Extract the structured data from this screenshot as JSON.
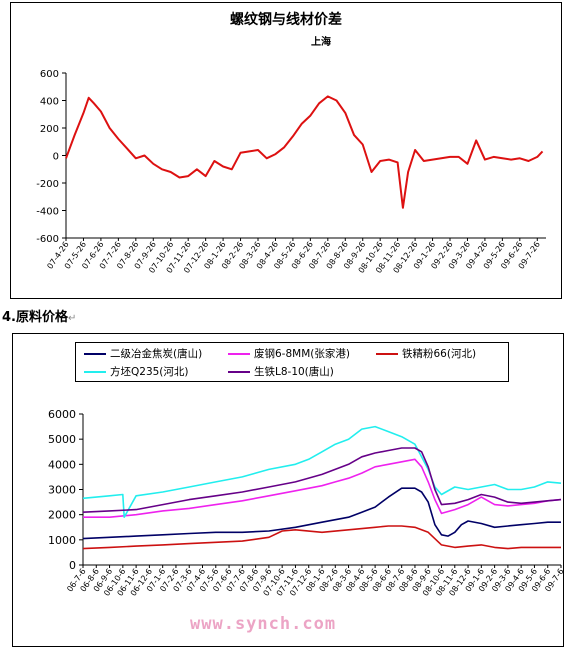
{
  "section_heading": "4.原料价格",
  "watermark": "www.synch.com",
  "chart_data": [
    {
      "type": "line",
      "title": "螺纹钢与线材价差",
      "subtitle": "上海",
      "ylim": [
        -600,
        600
      ],
      "yticks": [
        600,
        400,
        200,
        0,
        -200,
        -400,
        -600
      ],
      "grid": false,
      "legend": "none",
      "x_tick_labels": [
        "07-4-26",
        "07-5-26",
        "07-6-26",
        "07-7-26",
        "07-8-26",
        "07-9-26",
        "07-10-26",
        "07-11-26",
        "07-12-26",
        "08-1-26",
        "08-2-26",
        "08-3-26",
        "08-4-26",
        "08-5-26",
        "08-6-26",
        "08-7-26",
        "08-8-26",
        "08-9-26",
        "08-10-26",
        "08-11-26",
        "08-12-26",
        "09-1-26",
        "09-2-26",
        "09-3-26",
        "09-4-26",
        "09-5-26",
        "09-6-26",
        "09-7-26"
      ],
      "series": [
        {
          "color": "#dd1111",
          "x": [
            0,
            0.5,
            1,
            1.3,
            1.6,
            2,
            2.5,
            3,
            3.5,
            4,
            4.5,
            5,
            5.5,
            6,
            6.5,
            7,
            7.5,
            8,
            8.5,
            9,
            9.5,
            10,
            10.5,
            11,
            11.5,
            12,
            12.5,
            13,
            13.5,
            14,
            14.5,
            15,
            15.5,
            16,
            16.5,
            17,
            17.5,
            18,
            18.5,
            19,
            19.3,
            19.6,
            20,
            20.5,
            21,
            21.5,
            22,
            22.5,
            23,
            23.5,
            24,
            24.5,
            25,
            25.5,
            26,
            26.5,
            27,
            27.3
          ],
          "values": [
            -20,
            150,
            310,
            420,
            380,
            320,
            200,
            120,
            50,
            -20,
            0,
            -60,
            -100,
            -120,
            -160,
            -150,
            -100,
            -150,
            -40,
            -80,
            -100,
            20,
            30,
            40,
            -20,
            10,
            60,
            140,
            230,
            290,
            380,
            430,
            400,
            310,
            150,
            80,
            -120,
            -40,
            -30,
            -50,
            -380,
            -120,
            40,
            -40,
            -30,
            -20,
            -10,
            -10,
            -60,
            110,
            -30,
            -10,
            -20,
            -30,
            -20,
            -40,
            -10,
            30
          ]
        }
      ]
    },
    {
      "type": "line",
      "ylim": [
        0,
        6000
      ],
      "yticks": [
        6000,
        5000,
        4000,
        3000,
        2000,
        1000,
        0
      ],
      "grid": false,
      "legend": "top",
      "x_tick_labels": [
        "06-7-6",
        "06-8-6",
        "06-9-6",
        "06-10-6",
        "06-11-6",
        "06-12-6",
        "07-1-6",
        "07-2-6",
        "07-3-6",
        "07-4-6",
        "07-5-6",
        "07-6-6",
        "07-7-6",
        "07-8-6",
        "07-9-6",
        "07-10-6",
        "07-11-6",
        "07-12-6",
        "08-1-6",
        "08-2-6",
        "08-3-6",
        "08-4-6",
        "08-5-6",
        "08-6-6",
        "08-7-6",
        "08-8-6",
        "08-9-6",
        "08-10-6",
        "08-11-6",
        "08-12-6",
        "09-1-6",
        "09-2-6",
        "09-3-6",
        "09-4-6",
        "09-5-6",
        "09-6-6",
        "09-7-6"
      ],
      "series": [
        {
          "name": "二级冶金焦炭(唐山)",
          "color": "#000066",
          "x": [
            0,
            2,
            4,
            6,
            8,
            10,
            12,
            14,
            16,
            18,
            20,
            21,
            22,
            23,
            24,
            25,
            25.5,
            26,
            26.5,
            27,
            27.5,
            28,
            28.5,
            29,
            30,
            31,
            32,
            33,
            34,
            35,
            36
          ],
          "values": [
            1050,
            1100,
            1150,
            1200,
            1250,
            1300,
            1300,
            1350,
            1500,
            1700,
            1900,
            2100,
            2300,
            2700,
            3050,
            3050,
            2900,
            2500,
            1600,
            1200,
            1150,
            1300,
            1600,
            1750,
            1650,
            1500,
            1550,
            1600,
            1650,
            1700,
            1700
          ]
        },
        {
          "name": "废钢6-8MM(张家港)",
          "color": "#ee22ee",
          "x": [
            0,
            2,
            4,
            6,
            8,
            10,
            12,
            14,
            16,
            18,
            19,
            20,
            21,
            22,
            23,
            24,
            25,
            25.5,
            26,
            26.5,
            27,
            28,
            29,
            30,
            31,
            32,
            33,
            34,
            35,
            36
          ],
          "values": [
            1900,
            1900,
            2000,
            2150,
            2250,
            2400,
            2550,
            2750,
            2950,
            3150,
            3300,
            3450,
            3650,
            3900,
            4000,
            4100,
            4200,
            3900,
            3300,
            2600,
            2050,
            2200,
            2400,
            2700,
            2400,
            2350,
            2400,
            2450,
            2550,
            2600
          ]
        },
        {
          "name": "铁精粉66(河北)",
          "color": "#cc1111",
          "x": [
            0,
            2,
            4,
            6,
            8,
            10,
            12,
            14,
            15,
            16,
            18,
            20,
            22,
            23,
            24,
            25,
            26,
            27,
            28,
            29,
            30,
            31,
            32,
            33,
            34,
            35,
            36
          ],
          "values": [
            650,
            700,
            750,
            800,
            850,
            900,
            950,
            1100,
            1350,
            1400,
            1300,
            1400,
            1500,
            1550,
            1550,
            1500,
            1300,
            800,
            700,
            750,
            800,
            700,
            650,
            700,
            700,
            700,
            700
          ]
        },
        {
          "name": "方坯Q235(河北)",
          "color": "#22eeee",
          "x": [
            0,
            2,
            3,
            3.1,
            4,
            6,
            8,
            10,
            12,
            14,
            16,
            17,
            18,
            19,
            20,
            21,
            22,
            23,
            24,
            25,
            25.5,
            26,
            26.5,
            27,
            28,
            29,
            30,
            31,
            32,
            33,
            34,
            35,
            36
          ],
          "values": [
            2650,
            2750,
            2800,
            1900,
            2750,
            2900,
            3100,
            3300,
            3500,
            3800,
            4000,
            4200,
            4500,
            4800,
            5000,
            5400,
            5500,
            5300,
            5100,
            4800,
            4300,
            3800,
            3100,
            2800,
            3100,
            3000,
            3100,
            3200,
            3000,
            3000,
            3100,
            3300,
            3250
          ]
        },
        {
          "name": "生铁L8-10(唐山)",
          "color": "#660088",
          "x": [
            0,
            2,
            4,
            6,
            8,
            10,
            12,
            14,
            16,
            18,
            20,
            21,
            22,
            23,
            24,
            25,
            25.5,
            26,
            26.5,
            27,
            28,
            29,
            30,
            31,
            32,
            33,
            34,
            35,
            36
          ],
          "values": [
            2100,
            2150,
            2200,
            2400,
            2600,
            2750,
            2900,
            3100,
            3300,
            3600,
            4000,
            4300,
            4450,
            4550,
            4650,
            4650,
            4500,
            3900,
            3000,
            2400,
            2450,
            2600,
            2800,
            2700,
            2500,
            2450,
            2500,
            2550,
            2600
          ]
        }
      ]
    }
  ]
}
